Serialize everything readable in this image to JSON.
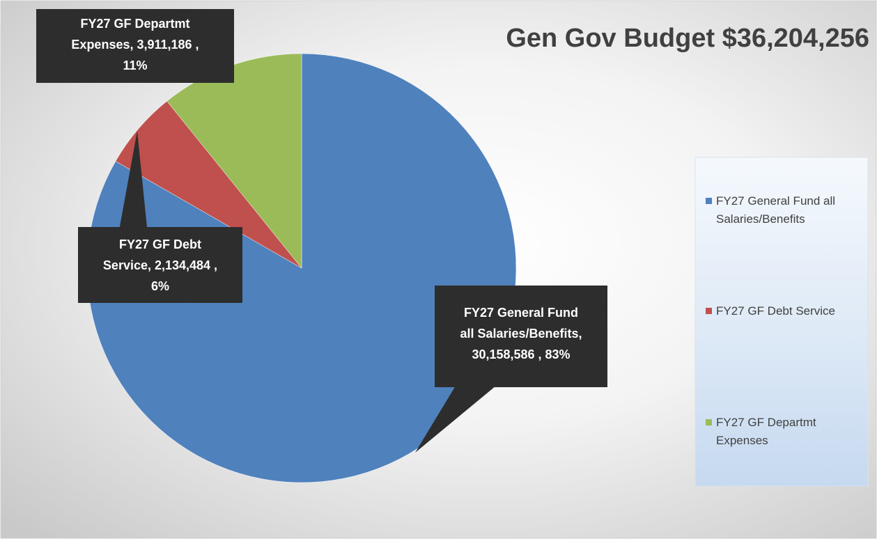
{
  "chart_data": {
    "type": "pie",
    "title": "Gen Gov Budget $36,204,256",
    "slices": [
      {
        "name": "FY27 General Fund all Salaries/Benefits",
        "value": 30158586,
        "percent": 83,
        "color": "#4F81BD",
        "label_lines": [
          "FY27 General Fund",
          "all Salaries/Benefits,",
          "30,158,586 , 83%"
        ],
        "legend_lines": [
          "FY27 General Fund all",
          "Salaries/Benefits"
        ]
      },
      {
        "name": "FY27 GF Debt Service",
        "value": 2134484,
        "percent": 6,
        "color": "#C0504D",
        "label_lines": [
          "FY27 GF Debt",
          "Service, 2,134,484 ,",
          "6%"
        ],
        "legend_lines": [
          "FY27 GF Debt Service"
        ]
      },
      {
        "name": "FY27 GF Departmt Expenses",
        "value": 3911186,
        "percent": 11,
        "color": "#9BBB59",
        "label_lines": [
          "FY27 GF Departmt",
          "Expenses, 3,911,186 ,",
          "11%"
        ],
        "legend_lines": [
          "FY27 GF Departmt",
          "Expenses"
        ]
      }
    ],
    "legend_position": "right",
    "callout_color": "#2b2b2b"
  }
}
